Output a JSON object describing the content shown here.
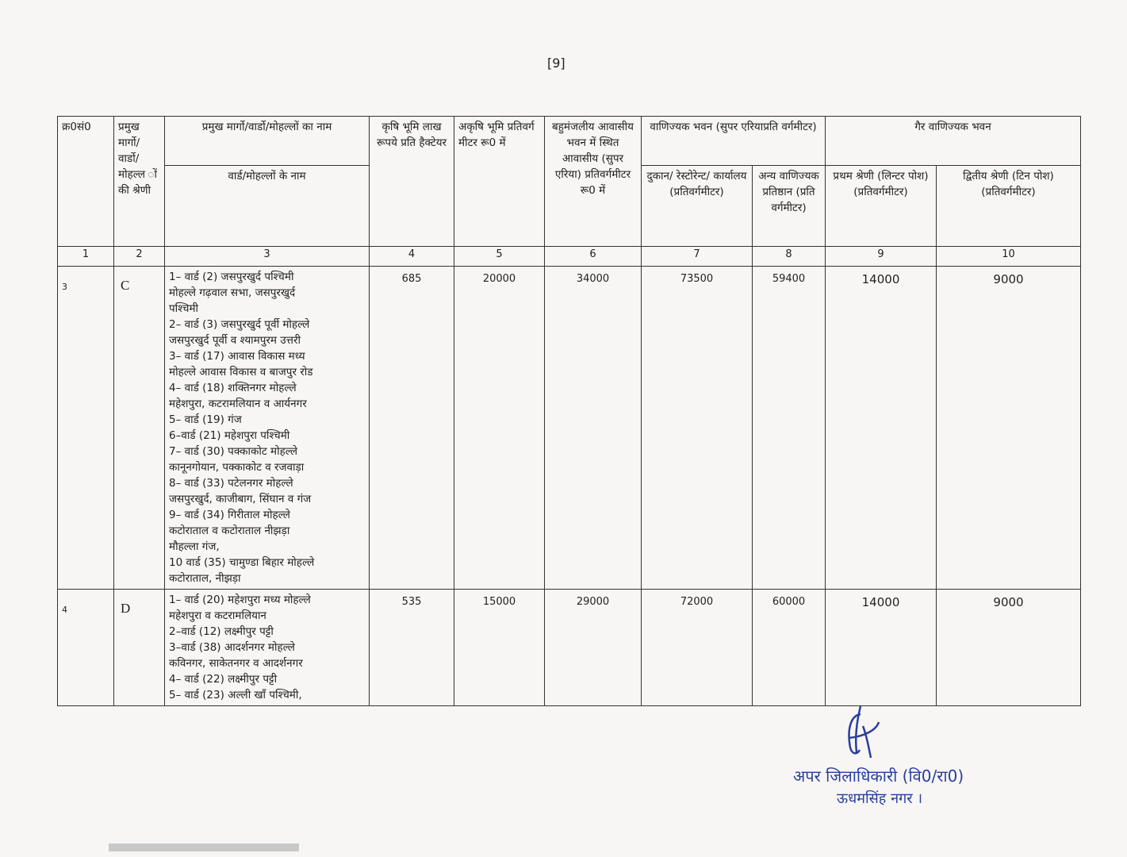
{
  "page_number": "[9]",
  "headers": {
    "c1": "क्र0सं0",
    "c2": "प्रमुख मार्गो/ वार्डो/ मोहल्ल ों की श्रेणी",
    "c3": "प्रमुख मार्गो/वार्डो/मोहल्लों का नाम",
    "c3_sub": "वार्ड/मोहल्लों के नाम",
    "c4": "कृषि भूमि लाख रूपये प्रति हैक्टेयर",
    "c5": "अकृषि भूमि प्रतिवर्ग मीटर रू0 में",
    "c6": "बहुमंजलीय आवासीय भवन में स्थित आवासीय (सुपर एरिया) प्रतिवर्गमीटर रू0 में",
    "commercial": "वाणिज्यक भवन (सुपर एरियाप्रति वर्गमीटर)",
    "c7": "दुकान/ रेस्टोरेन्ट/ कार्यालय (प्रतिवर्गमीटर)",
    "c8": "अन्य वाणिज्यक प्रतिष्ठान (प्रति वर्गमीटर)",
    "noncommercial": "गैर वाणिज्यक भवन",
    "c9": "प्रथम श्रेणी (लिन्टर पोश) (प्रतिवर्गमीटर)",
    "c10": "द्वितीय श्रेणी (टिन पोश) (प्रतिवर्गमीटर)"
  },
  "col_numbers": [
    "1",
    "2",
    "3",
    "4",
    "5",
    "6",
    "7",
    "8",
    "9",
    "10"
  ],
  "rows": [
    {
      "sno": "3",
      "category": "C",
      "wards": [
        "1– वार्ड (2) जसपुरखुर्द पश्चिमी",
        "मोहल्ले गढ़वाल सभा, जसपुरखुर्द",
        "पश्चिमी",
        "2– वार्ड (3) जसपुरखुर्द पूर्वी मोहल्ले",
        "जसपुरखुर्द पूर्वी व श्यामपुरम उत्तरी",
        "3– वार्ड (17) आवास विकास मध्य",
        "मोहल्ले आवास विकास व बाजपुर रोड",
        "4– वार्ड (18) शक्तिनगर मोहल्ले",
        "महेशपुरा, कटरामलियान व आर्यनगर",
        "5– वार्ड (19) गंज",
        "6–वार्ड (21) महेशपुरा पश्चिमी",
        "7– वार्ड (30) पक्काकोट मोहल्ले",
        "कानूनगोयान, पक्काकोट व रजवाड़ा",
        "8– वार्ड (33) पटेलनगर मोहल्ले",
        "जसपुरखुर्द, काजीबाग, सिंघान व गंज",
        "9– वार्ड (34) गिरीताल मोहल्ले",
        "कटोराताल व कटोराताल नीझड़ा",
        "मौहल्ला गंज,",
        "10 वार्ड (35) चामुण्डा बिहार मोहल्ले",
        "कटोराताल, नीझड़ा"
      ],
      "v4": "685",
      "v5": "20000",
      "v6": "34000",
      "v7": "73500",
      "v8": "59400",
      "v9": "14000",
      "v10": "9000"
    },
    {
      "sno": "4",
      "category": "D",
      "wards": [
        "1– वार्ड (20) महेशपुरा मध्य मोहल्ले",
        "महेशपुरा व कटरामलियान",
        "2–वार्ड (12) लक्ष्मीपुर पट्टी",
        "3–वार्ड (38) आदर्शनगर मोहल्ले",
        "कविनगर, साकेतनगर व आदर्शनगर",
        "4–  वार्ड (22) लक्ष्मीपुर पट्टी",
        "5– वार्ड (23) अल्ली खॉं पश्चिमी,"
      ],
      "v4": "535",
      "v5": "15000",
      "v6": "29000",
      "v7": "72000",
      "v8": "60000",
      "v9": "14000",
      "v10": "9000"
    }
  ],
  "signature": {
    "title": "अपर जिलाधिकारी (वि0/रा0)",
    "place": "ऊधमसिंह नगर ।"
  },
  "colors": {
    "ink": "#222222",
    "signature": "#2a3e9c"
  }
}
